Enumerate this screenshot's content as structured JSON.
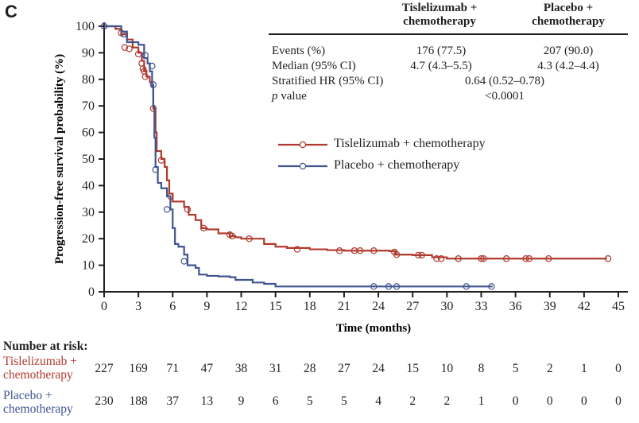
{
  "panel_label": "C",
  "colors": {
    "tislelizumab": "#B03A2E",
    "placebo": "#3F5590",
    "axis": "#231f20"
  },
  "summary_table": {
    "col_headers": [
      {
        "line1": "Tislelizumab +",
        "line2": "chemotherapy"
      },
      {
        "line1": "Placebo +",
        "line2": "chemotherapy"
      }
    ],
    "rows": [
      {
        "label": "Events (%)",
        "tis": "176 (77.5)",
        "pla": "207 (90.0)"
      },
      {
        "label": "Median (95% CI)",
        "tis": "4.7 (4.3–5.5)",
        "pla": "4.3 (4.2–4.4)"
      },
      {
        "label": "Stratified HR (95% CI)",
        "combined": "0.64 (0.52–0.78)"
      },
      {
        "label_italic": "p",
        "label_rest": " value",
        "combined": "<0.0001"
      }
    ]
  },
  "chart_data": {
    "type": "line",
    "subtype": "kaplan-meier",
    "title": "",
    "xlabel": "Time (months)",
    "ylabel": "Progression-free survival probability (%)",
    "xlim": [
      0,
      45
    ],
    "ylim": [
      0,
      100
    ],
    "xticks": [
      0,
      3,
      6,
      9,
      12,
      15,
      18,
      21,
      24,
      27,
      30,
      33,
      36,
      39,
      42,
      45
    ],
    "yticks": [
      0,
      10,
      20,
      30,
      40,
      50,
      60,
      70,
      80,
      90,
      100
    ],
    "grid": false,
    "legend_position": "upper-right",
    "series": [
      {
        "name": "Tislelizumab + chemotherapy",
        "color_key": "tislelizumab",
        "steps": [
          [
            0,
            100
          ],
          [
            1,
            99
          ],
          [
            1.5,
            97
          ],
          [
            2,
            95
          ],
          [
            2.5,
            92
          ],
          [
            3,
            90
          ],
          [
            3.3,
            87
          ],
          [
            3.5,
            83
          ],
          [
            3.7,
            81
          ],
          [
            4,
            79
          ],
          [
            4.2,
            77
          ],
          [
            4.3,
            69
          ],
          [
            4.5,
            60
          ],
          [
            4.6,
            53
          ],
          [
            5,
            50
          ],
          [
            5.3,
            47
          ],
          [
            5.5,
            42
          ],
          [
            5.7,
            37
          ],
          [
            6,
            34
          ],
          [
            7,
            32
          ],
          [
            7.4,
            29
          ],
          [
            8,
            27
          ],
          [
            8.5,
            24
          ],
          [
            9,
            23.5
          ],
          [
            10,
            22
          ],
          [
            11,
            21
          ],
          [
            11.5,
            20.5
          ],
          [
            12,
            20
          ],
          [
            14,
            18
          ],
          [
            15,
            17
          ],
          [
            16,
            16.5
          ],
          [
            18,
            16
          ],
          [
            19.5,
            15.7
          ],
          [
            21,
            15.5
          ],
          [
            25,
            15.3
          ],
          [
            25.5,
            14
          ],
          [
            27,
            13.8
          ],
          [
            28.7,
            13
          ],
          [
            30,
            12.5
          ],
          [
            44,
            12.5
          ]
        ],
        "censored": [
          [
            0,
            100
          ],
          [
            1.5,
            97.5
          ],
          [
            1.8,
            92
          ],
          [
            2.2,
            91.5
          ],
          [
            3,
            89.5
          ],
          [
            3.3,
            86
          ],
          [
            3.4,
            84
          ],
          [
            3.5,
            83
          ],
          [
            3.6,
            81
          ],
          [
            4.3,
            69
          ],
          [
            5,
            49.5
          ],
          [
            5.8,
            36
          ],
          [
            7.3,
            31
          ],
          [
            8.7,
            24
          ],
          [
            11,
            21.5
          ],
          [
            11.2,
            21
          ],
          [
            12.7,
            20
          ],
          [
            16.9,
            16
          ],
          [
            20.6,
            15.5
          ],
          [
            21.9,
            15.5
          ],
          [
            22.4,
            15.5
          ],
          [
            23.6,
            15.5
          ],
          [
            25.4,
            15
          ],
          [
            25.6,
            14
          ],
          [
            27.5,
            13.8
          ],
          [
            27.8,
            13.8
          ],
          [
            29.1,
            12.5
          ],
          [
            29.5,
            12.5
          ],
          [
            31,
            12.5
          ],
          [
            33,
            12.5
          ],
          [
            33.2,
            12.5
          ],
          [
            35.2,
            12.5
          ],
          [
            36.9,
            12.5
          ],
          [
            37.2,
            12.5
          ],
          [
            38.9,
            12.5
          ],
          [
            44.1,
            12.5
          ]
        ]
      },
      {
        "name": "Placebo + chemotherapy",
        "color_key": "placebo",
        "steps": [
          [
            0,
            100
          ],
          [
            1.5,
            98
          ],
          [
            2,
            94
          ],
          [
            3,
            93
          ],
          [
            3.5,
            88
          ],
          [
            3.8,
            86
          ],
          [
            4,
            83
          ],
          [
            4.2,
            78
          ],
          [
            4.3,
            70
          ],
          [
            4.4,
            58
          ],
          [
            4.5,
            47
          ],
          [
            4.7,
            41
          ],
          [
            5,
            39
          ],
          [
            5.5,
            36
          ],
          [
            5.8,
            31
          ],
          [
            6,
            24
          ],
          [
            6.2,
            18
          ],
          [
            6.5,
            17
          ],
          [
            7,
            14
          ],
          [
            7.3,
            10
          ],
          [
            8,
            9
          ],
          [
            8.3,
            6.5
          ],
          [
            9,
            6
          ],
          [
            10,
            5.8
          ],
          [
            11,
            5.5
          ],
          [
            11.5,
            4.5
          ],
          [
            13,
            3.5
          ],
          [
            14,
            3
          ],
          [
            15,
            2
          ],
          [
            34,
            2
          ]
        ],
        "censored": [
          [
            0,
            100
          ],
          [
            1.7,
            97
          ],
          [
            3.6,
            89
          ],
          [
            4.2,
            85
          ],
          [
            4.3,
            78
          ],
          [
            4.5,
            46
          ],
          [
            5.5,
            31
          ],
          [
            7,
            11.5
          ],
          [
            23.6,
            2
          ],
          [
            24.9,
            2
          ],
          [
            25.6,
            2
          ],
          [
            31.7,
            2
          ],
          [
            33.9,
            2
          ]
        ]
      }
    ],
    "number_at_risk": {
      "title": "Number at risk:",
      "times": [
        0,
        3,
        6,
        9,
        12,
        15,
        18,
        21,
        24,
        27,
        30,
        33,
        36,
        39,
        42,
        45
      ],
      "groups": [
        {
          "label_line1": "Tislelizumab +",
          "label_line2": "chemotherapy",
          "color_key": "tislelizumab",
          "values": [
            227,
            169,
            71,
            47,
            38,
            31,
            28,
            27,
            24,
            15,
            10,
            8,
            5,
            2,
            1,
            0
          ]
        },
        {
          "label_line1": "Placebo +",
          "label_line2": "chemotherapy",
          "color_key": "placebo",
          "values": [
            230,
            188,
            37,
            13,
            9,
            6,
            5,
            5,
            4,
            2,
            2,
            1,
            0,
            0,
            0,
            0
          ]
        }
      ]
    }
  }
}
